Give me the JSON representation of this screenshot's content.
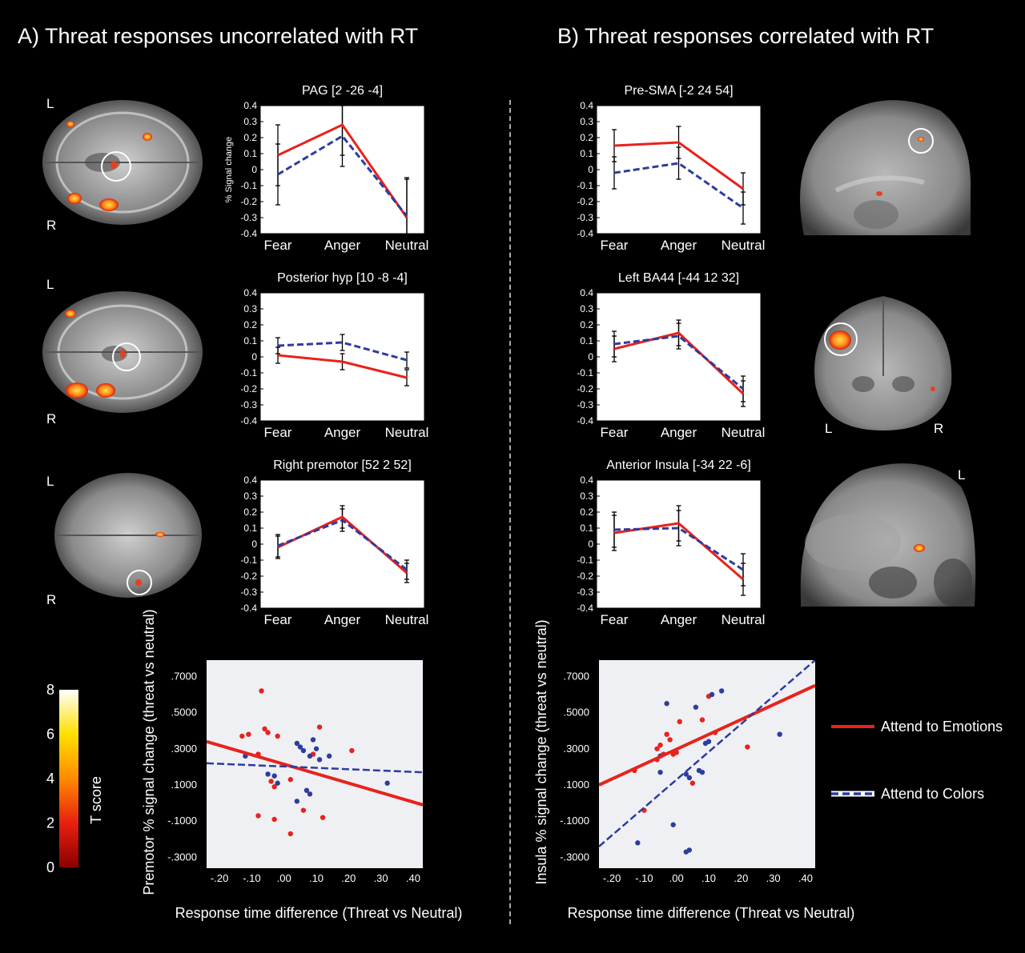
{
  "panel_a_title": "A) Threat responses uncorrelated with RT",
  "panel_b_title": "B) Threat responses correlated with RT",
  "brain_labels": {
    "a1_top": "L",
    "a1_bottom": "R",
    "a2_top": "L",
    "a2_bottom": "R",
    "a3_top": "L",
    "a3_bottom": "R",
    "b2_left": "L",
    "b2_right": "R",
    "b3_top": "L"
  },
  "colors": {
    "emotions": "#e8221c",
    "colors": "#2e3c9e",
    "plot_bg": "#ffffff",
    "scatter_bg": "#eef0f4"
  },
  "colorbar": {
    "label": "T score",
    "ticks": [
      "0",
      "2",
      "4",
      "6",
      "8"
    ],
    "range": [
      0,
      8
    ]
  },
  "legend": {
    "emotions_label": "Attend to Emotions",
    "colors_label": "Attend to Colors"
  },
  "chart_data": [
    {
      "id": "a1",
      "type": "line",
      "title": "PAG [2 -26 -4]",
      "ylabel": "% Signal change",
      "categories": [
        "Fear",
        "Anger",
        "Neutral"
      ],
      "ylim": [
        -0.4,
        0.4
      ],
      "yticks": [
        "0.4",
        "0.3",
        "0.2",
        "0.1",
        "0",
        "-0.1",
        "-0.2",
        "-0.3",
        "-0.4"
      ],
      "series": [
        {
          "name": "Attend to Emotions",
          "values": [
            0.09,
            0.28,
            -0.3
          ],
          "err": [
            0.19,
            0.19,
            0.24
          ]
        },
        {
          "name": "Attend to Colors",
          "values": [
            -0.03,
            0.21,
            -0.29
          ],
          "err": [
            0.19,
            0.19,
            0.24
          ]
        }
      ]
    },
    {
      "id": "a2",
      "type": "line",
      "title": "Posterior hyp [10 -8 -4]",
      "categories": [
        "Fear",
        "Anger",
        "Neutral"
      ],
      "ylim": [
        -0.4,
        0.4
      ],
      "yticks": [
        "0.4",
        "0.3",
        "0.2",
        "0.1",
        "0",
        "-0.1",
        "-0.2",
        "-0.3",
        "-0.4"
      ],
      "series": [
        {
          "name": "Attend to Emotions",
          "values": [
            0.01,
            -0.03,
            -0.13
          ],
          "err": [
            0.05,
            0.05,
            0.05
          ]
        },
        {
          "name": "Attend to Colors",
          "values": [
            0.07,
            0.09,
            -0.02
          ],
          "err": [
            0.05,
            0.05,
            0.05
          ]
        }
      ]
    },
    {
      "id": "a3",
      "type": "line",
      "title": "Right premotor [52 2 52]",
      "categories": [
        "Fear",
        "Anger",
        "Neutral"
      ],
      "ylim": [
        -0.4,
        0.4
      ],
      "yticks": [
        "0.4",
        "0.3",
        "0.2",
        "0.1",
        "0",
        "-0.1",
        "-0.2",
        "-0.3",
        "-0.4"
      ],
      "series": [
        {
          "name": "Attend to Emotions",
          "values": [
            -0.02,
            0.17,
            -0.18
          ],
          "err": [
            0.07,
            0.07,
            0.06
          ]
        },
        {
          "name": "Attend to Colors",
          "values": [
            -0.01,
            0.15,
            -0.16
          ],
          "err": [
            0.07,
            0.07,
            0.06
          ]
        }
      ]
    },
    {
      "id": "b1",
      "type": "line",
      "title": "Pre-SMA [-2 24 54]",
      "categories": [
        "Fear",
        "Anger",
        "Neutral"
      ],
      "ylim": [
        -0.4,
        0.4
      ],
      "yticks": [
        "0.4",
        "0.3",
        "0.2",
        "0.1",
        "0",
        "-0.1",
        "-0.2",
        "-0.3",
        "-0.4"
      ],
      "series": [
        {
          "name": "Attend to Emotions",
          "values": [
            0.15,
            0.17,
            -0.12
          ],
          "err": [
            0.1,
            0.1,
            0.1
          ]
        },
        {
          "name": "Attend to Colors",
          "values": [
            -0.02,
            0.04,
            -0.24
          ],
          "err": [
            0.1,
            0.1,
            0.1
          ]
        }
      ]
    },
    {
      "id": "b2",
      "type": "line",
      "title": "Left BA44 [-44 12 32]",
      "categories": [
        "Fear",
        "Anger",
        "Neutral"
      ],
      "ylim": [
        -0.4,
        0.4
      ],
      "yticks": [
        "0.4",
        "0.3",
        "0.2",
        "0.1",
        "0",
        "-0.1",
        "-0.2",
        "-0.3",
        "-0.4"
      ],
      "series": [
        {
          "name": "Attend to Emotions",
          "values": [
            0.05,
            0.15,
            -0.23
          ],
          "err": [
            0.08,
            0.08,
            0.08
          ]
        },
        {
          "name": "Attend to Colors",
          "values": [
            0.08,
            0.13,
            -0.2
          ],
          "err": [
            0.08,
            0.08,
            0.08
          ]
        }
      ]
    },
    {
      "id": "b3",
      "type": "line",
      "title": "Anterior Insula [-34 22 -6]",
      "categories": [
        "Fear",
        "Anger",
        "Neutral"
      ],
      "ylim": [
        -0.4,
        0.4
      ],
      "yticks": [
        "0.4",
        "0.3",
        "0.2",
        "0.1",
        "0",
        "-0.1",
        "-0.2",
        "-0.3",
        "-0.4"
      ],
      "series": [
        {
          "name": "Attend to Emotions",
          "values": [
            0.07,
            0.13,
            -0.22
          ],
          "err": [
            0.11,
            0.11,
            0.1
          ]
        },
        {
          "name": "Attend to Colors",
          "values": [
            0.09,
            0.1,
            -0.16
          ],
          "err": [
            0.11,
            0.11,
            0.1
          ]
        }
      ]
    },
    {
      "id": "sa",
      "type": "scatter",
      "xlabel": "Response time difference (Threat vs Neutral)",
      "ylabel": "Premotor % signal change (threat vs neutral)",
      "xlim": [
        -0.24,
        0.43
      ],
      "ylim": [
        -0.36,
        0.79
      ],
      "xticks": [
        {
          "v": -0.2,
          "t": "-.20"
        },
        {
          "v": -0.1,
          "t": "-.10"
        },
        {
          "v": 0.0,
          "t": ".00"
        },
        {
          "v": 0.1,
          "t": ".10"
        },
        {
          "v": 0.2,
          "t": ".20"
        },
        {
          "v": 0.3,
          "t": ".30"
        },
        {
          "v": 0.4,
          "t": ".40"
        }
      ],
      "yticks": [
        {
          "v": 0.7,
          "t": ".7000"
        },
        {
          "v": 0.5,
          "t": ".5000"
        },
        {
          "v": 0.3,
          "t": ".3000"
        },
        {
          "v": 0.1,
          "t": ".1000"
        },
        {
          "v": -0.1,
          "t": "-.1000"
        },
        {
          "v": -0.3,
          "t": "-.3000"
        }
      ],
      "series": [
        {
          "name": "Attend to Emotions",
          "points": [
            [
              -0.13,
              0.37
            ],
            [
              -0.11,
              0.38
            ],
            [
              -0.07,
              0.62
            ],
            [
              -0.06,
              0.41
            ],
            [
              -0.05,
              0.39
            ],
            [
              -0.02,
              0.37
            ],
            [
              -0.08,
              0.27
            ],
            [
              -0.04,
              0.12
            ],
            [
              -0.03,
              0.09
            ],
            [
              0.02,
              0.13
            ],
            [
              0.09,
              0.27
            ],
            [
              0.11,
              0.42
            ],
            [
              0.21,
              0.29
            ],
            [
              -0.08,
              -0.07
            ],
            [
              -0.03,
              -0.09
            ],
            [
              0.06,
              -0.04
            ],
            [
              0.12,
              -0.08
            ],
            [
              0.02,
              -0.17
            ]
          ],
          "fit": [
            [
              -0.24,
              0.34
            ],
            [
              0.43,
              -0.01
            ]
          ]
        },
        {
          "name": "Attend to Colors",
          "points": [
            [
              -0.12,
              0.26
            ],
            [
              -0.05,
              0.16
            ],
            [
              -0.03,
              0.15
            ],
            [
              -0.02,
              0.11
            ],
            [
              0.04,
              0.33
            ],
            [
              0.05,
              0.31
            ],
            [
              0.06,
              0.29
            ],
            [
              0.08,
              0.26
            ],
            [
              0.09,
              0.35
            ],
            [
              0.11,
              0.24
            ],
            [
              0.14,
              0.26
            ],
            [
              0.1,
              0.3
            ],
            [
              0.07,
              0.07
            ],
            [
              0.08,
              0.05
            ],
            [
              0.04,
              0.01
            ],
            [
              0.32,
              0.11
            ]
          ],
          "fit": [
            [
              -0.24,
              0.22
            ],
            [
              0.43,
              0.17
            ]
          ]
        }
      ]
    },
    {
      "id": "sb",
      "type": "scatter",
      "xlabel": "Response time difference (Threat vs Neutral)",
      "ylabel": "Insula % signal change (threat vs neutral)",
      "xlim": [
        -0.24,
        0.43
      ],
      "ylim": [
        -0.36,
        0.79
      ],
      "xticks": [
        {
          "v": -0.2,
          "t": "-.20"
        },
        {
          "v": -0.1,
          "t": "-.10"
        },
        {
          "v": 0.0,
          "t": ".00"
        },
        {
          "v": 0.1,
          "t": ".10"
        },
        {
          "v": 0.2,
          "t": ".20"
        },
        {
          "v": 0.3,
          "t": ".30"
        },
        {
          "v": 0.4,
          "t": ".40"
        }
      ],
      "yticks": [
        {
          "v": 0.7,
          "t": ".7000"
        },
        {
          "v": 0.5,
          "t": ".5000"
        },
        {
          "v": 0.3,
          "t": ".3000"
        },
        {
          "v": 0.1,
          "t": ".1000"
        },
        {
          "v": -0.1,
          "t": "-.1000"
        },
        {
          "v": -0.3,
          "t": "-.3000"
        }
      ],
      "series": [
        {
          "name": "Attend to Emotions",
          "points": [
            [
              -0.13,
              0.18
            ],
            [
              -0.1,
              -0.04
            ],
            [
              -0.06,
              0.3
            ],
            [
              -0.05,
              0.32
            ],
            [
              -0.04,
              0.27
            ],
            [
              -0.03,
              0.38
            ],
            [
              -0.02,
              0.35
            ],
            [
              -0.01,
              0.27
            ],
            [
              0.0,
              0.28
            ],
            [
              0.01,
              0.45
            ],
            [
              0.05,
              0.11
            ],
            [
              0.08,
              0.46
            ],
            [
              0.1,
              0.59
            ],
            [
              0.12,
              0.39
            ],
            [
              0.22,
              0.31
            ],
            [
              -0.06,
              0.24
            ]
          ],
          "fit": [
            [
              -0.24,
              0.1
            ],
            [
              0.43,
              0.65
            ]
          ]
        },
        {
          "name": "Attend to Colors",
          "points": [
            [
              -0.12,
              -0.22
            ],
            [
              -0.05,
              0.17
            ],
            [
              -0.03,
              0.55
            ],
            [
              -0.05,
              0.26
            ],
            [
              0.03,
              0.16
            ],
            [
              0.04,
              0.14
            ],
            [
              0.06,
              0.53
            ],
            [
              0.07,
              0.18
            ],
            [
              0.08,
              0.17
            ],
            [
              0.09,
              0.33
            ],
            [
              0.1,
              0.34
            ],
            [
              0.11,
              0.6
            ],
            [
              0.14,
              0.62
            ],
            [
              0.32,
              0.38
            ],
            [
              0.03,
              -0.27
            ],
            [
              0.04,
              -0.26
            ],
            [
              -0.01,
              -0.12
            ]
          ],
          "fit": [
            [
              -0.24,
              -0.24
            ],
            [
              0.43,
              0.79
            ]
          ]
        }
      ]
    }
  ]
}
